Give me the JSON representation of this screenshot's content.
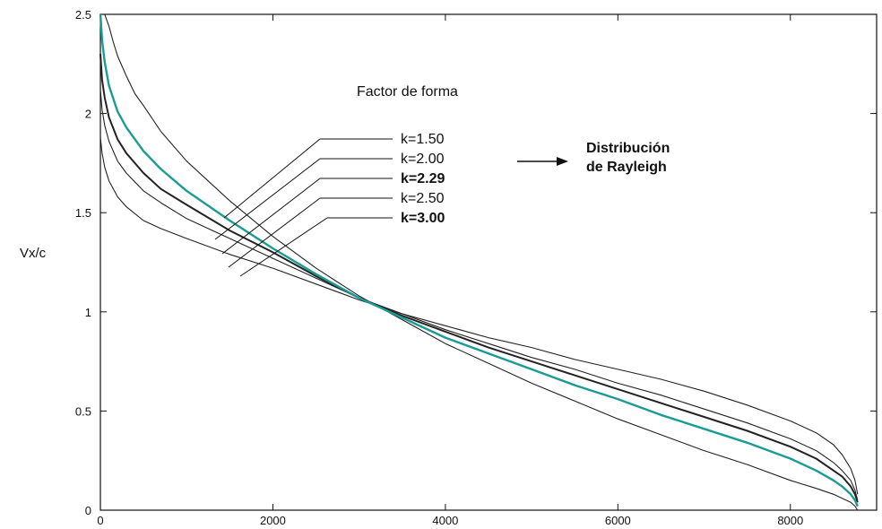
{
  "chart_data": {
    "type": "line",
    "title": "",
    "xlabel": "",
    "ylabel": "Vx/c",
    "xlim": [
      0,
      9000
    ],
    "ylim": [
      0,
      2.5
    ],
    "xticks": [
      0,
      2000,
      4000,
      6000,
      8000
    ],
    "xtick_labels": [
      "0",
      "2000",
      "4000",
      "6000",
      "8000"
    ],
    "yticks": [
      0,
      0.5,
      1,
      1.5,
      2,
      2.5
    ],
    "ytick_labels": [
      "0",
      "0.5",
      "1",
      "1.5",
      "2",
      "2.5"
    ],
    "grid": false,
    "legend_title": "Factor de forma",
    "rayleigh_label_line1": "Distribución",
    "rayleigh_label_line2": "de Rayleigh",
    "highlight_color": "#1a9c94",
    "line_color": "#222222",
    "series": [
      {
        "label": "k=1.50",
        "k": 1.5,
        "highlight": false,
        "x": [
          50,
          100,
          150,
          200,
          300,
          400,
          500,
          700,
          1000,
          1500,
          2000,
          2500,
          3000,
          3500,
          4000,
          4500,
          5000,
          5500,
          6000,
          6500,
          7000,
          7500,
          8000,
          8300,
          8500,
          8600,
          8700,
          8750,
          8780
        ],
        "y": [
          2.5,
          2.44,
          2.36,
          2.29,
          2.19,
          2.1,
          2.04,
          1.91,
          1.76,
          1.56,
          1.38,
          1.22,
          1.08,
          0.96,
          0.84,
          0.74,
          0.64,
          0.55,
          0.46,
          0.38,
          0.3,
          0.23,
          0.15,
          0.11,
          0.08,
          0.06,
          0.04,
          0.02,
          0.0
        ]
      },
      {
        "label": "k=2.00",
        "k": 2.0,
        "highlight": true,
        "x": [
          0,
          20,
          50,
          100,
          200,
          300,
          500,
          700,
          1000,
          1500,
          2000,
          2500,
          3000,
          3500,
          4000,
          4500,
          5000,
          5500,
          6000,
          6500,
          7000,
          7500,
          8000,
          8300,
          8500,
          8600,
          8700,
          8750,
          8780
        ],
        "y": [
          2.5,
          2.37,
          2.26,
          2.14,
          2.01,
          1.93,
          1.81,
          1.72,
          1.61,
          1.46,
          1.32,
          1.19,
          1.07,
          0.97,
          0.87,
          0.79,
          0.71,
          0.63,
          0.56,
          0.48,
          0.41,
          0.34,
          0.26,
          0.2,
          0.15,
          0.12,
          0.08,
          0.05,
          0.02
        ]
      },
      {
        "label": "k=2.29",
        "k": 2.29,
        "highlight": false,
        "x": [
          0,
          20,
          50,
          100,
          200,
          300,
          500,
          700,
          1000,
          1500,
          2000,
          2500,
          3000,
          3500,
          4000,
          4500,
          5000,
          5500,
          6000,
          6500,
          7000,
          7500,
          8000,
          8300,
          8500,
          8600,
          8700,
          8750,
          8780
        ],
        "y": [
          2.3,
          2.17,
          2.08,
          1.98,
          1.87,
          1.8,
          1.7,
          1.62,
          1.54,
          1.41,
          1.3,
          1.18,
          1.07,
          0.98,
          0.9,
          0.82,
          0.75,
          0.68,
          0.61,
          0.54,
          0.47,
          0.4,
          0.32,
          0.26,
          0.2,
          0.17,
          0.12,
          0.08,
          0.04
        ]
      },
      {
        "label": "k=2.50",
        "k": 2.5,
        "highlight": false,
        "x": [
          0,
          20,
          50,
          100,
          200,
          300,
          500,
          700,
          1000,
          1500,
          2000,
          2500,
          3000,
          3500,
          4000,
          4500,
          5000,
          5500,
          6000,
          6500,
          7000,
          7500,
          8000,
          8300,
          8500,
          8600,
          8700,
          8750,
          8780
        ],
        "y": [
          2.12,
          2.02,
          1.94,
          1.86,
          1.76,
          1.7,
          1.61,
          1.55,
          1.47,
          1.37,
          1.27,
          1.17,
          1.07,
          0.99,
          0.91,
          0.84,
          0.77,
          0.71,
          0.64,
          0.58,
          0.51,
          0.44,
          0.36,
          0.3,
          0.24,
          0.2,
          0.15,
          0.1,
          0.05
        ]
      },
      {
        "label": "k=3.00",
        "k": 3.0,
        "highlight": false,
        "x": [
          0,
          20,
          50,
          100,
          200,
          300,
          500,
          700,
          1000,
          1500,
          2000,
          2500,
          3000,
          3500,
          4000,
          4500,
          5000,
          5500,
          6000,
          6500,
          7000,
          7500,
          8000,
          8300,
          8500,
          8600,
          8700,
          8750,
          8780
        ],
        "y": [
          1.88,
          1.8,
          1.73,
          1.66,
          1.58,
          1.53,
          1.46,
          1.42,
          1.37,
          1.29,
          1.22,
          1.14,
          1.06,
          0.99,
          0.93,
          0.87,
          0.82,
          0.76,
          0.71,
          0.66,
          0.6,
          0.53,
          0.45,
          0.39,
          0.33,
          0.28,
          0.21,
          0.15,
          0.08
        ]
      }
    ]
  }
}
